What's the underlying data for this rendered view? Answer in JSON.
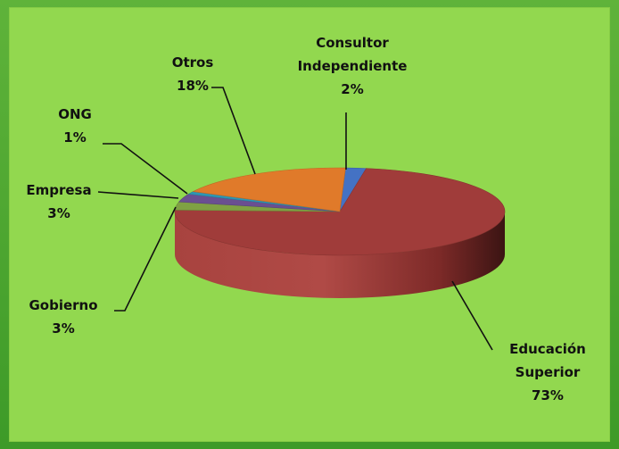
{
  "chart_data": {
    "type": "pie",
    "title": "",
    "series": [
      {
        "values": [
          2,
          73,
          3,
          3,
          1,
          18
        ],
        "categories": [
          "Consultor Independiente",
          "Educación Superior",
          "Gobierno",
          "Empresa",
          "ONG",
          "Otros"
        ]
      }
    ],
    "slices": [
      {
        "lines": [
          "Consultor",
          "Independiente"
        ],
        "value": 2,
        "pct_label": "2%",
        "color": "#4472c4"
      },
      {
        "lines": [
          "Educación",
          "Superior"
        ],
        "value": 73,
        "pct_label": "73%",
        "color": "#a03c3a"
      },
      {
        "lines": [
          "Gobierno"
        ],
        "value": 3,
        "pct_label": "3%",
        "color": "#7fa143"
      },
      {
        "lines": [
          "Empresa"
        ],
        "value": 3,
        "pct_label": "3%",
        "color": "#6a4f91"
      },
      {
        "lines": [
          "ONG"
        ],
        "value": 1,
        "pct_label": "1%",
        "color": "#2e96b4"
      },
      {
        "lines": [
          "Otros"
        ],
        "value": 18,
        "pct_label": "18%",
        "color": "#e07a2a"
      }
    ],
    "legend": "none",
    "style": "3d-pie"
  }
}
